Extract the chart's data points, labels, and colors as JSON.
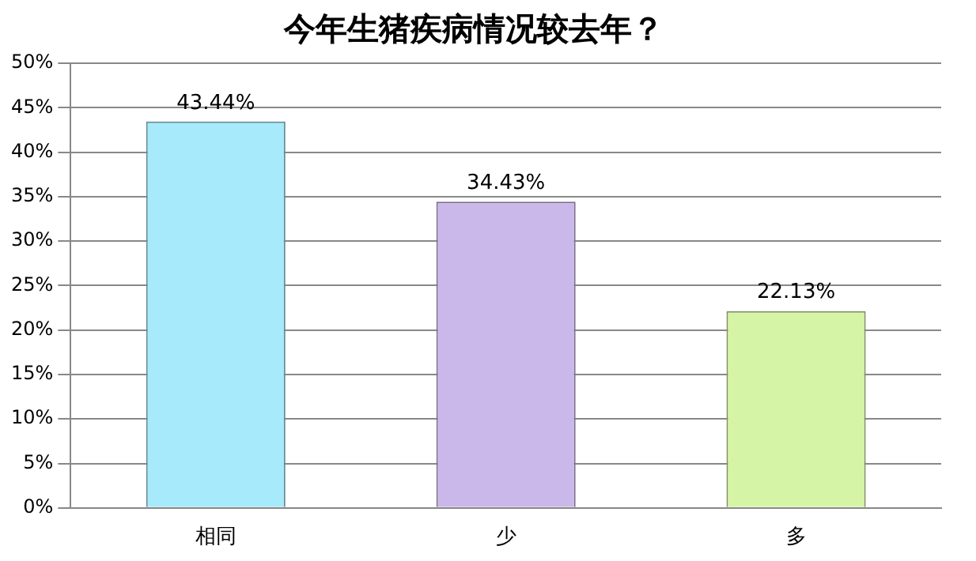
{
  "chart_data": {
    "type": "bar",
    "title": "今年生猪疾病情况较去年？",
    "categories": [
      "相同",
      "少",
      "多"
    ],
    "values": [
      43.44,
      34.43,
      22.13
    ],
    "colors": [
      "#a6eafb",
      "#cbb8ea",
      "#d6f4a6"
    ],
    "value_labels": [
      "43.44%",
      "34.43%",
      "22.13%"
    ],
    "ylim": [
      0,
      50
    ],
    "yticks": [
      {
        "value": 0,
        "label": "0%"
      },
      {
        "value": 5,
        "label": "5%"
      },
      {
        "value": 10,
        "label": "10%"
      },
      {
        "value": 15,
        "label": "15%"
      },
      {
        "value": 20,
        "label": "20%"
      },
      {
        "value": 25,
        "label": "25%"
      },
      {
        "value": 30,
        "label": "30%"
      },
      {
        "value": 35,
        "label": "35%"
      },
      {
        "value": 40,
        "label": "40%"
      },
      {
        "value": 45,
        "label": "45%"
      },
      {
        "value": 50,
        "label": "50%"
      }
    ],
    "grid": "y",
    "legend": false
  }
}
